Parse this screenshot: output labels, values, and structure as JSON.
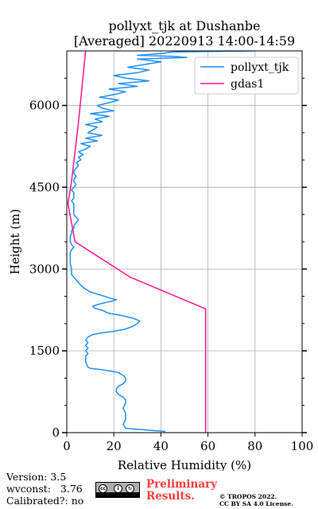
{
  "chart_data": {
    "type": "line",
    "title": "pollyxt_tjk at Dushanbe",
    "subtitle": "[Averaged] 20220913 14:00-14:59",
    "xlabel": "Relative Humidity (%)",
    "ylabel": "Height (m)",
    "xlim": [
      0,
      100
    ],
    "ylim": [
      0,
      7000
    ],
    "xticks": [
      0,
      20,
      40,
      60,
      80,
      100
    ],
    "yticks": [
      0,
      1500,
      3000,
      4500,
      6000
    ],
    "grid": true,
    "legend_position": "top-right",
    "series": [
      {
        "name": "pollyxt_tjk",
        "color": "#1e90ff",
        "x": [
          42,
          25,
          24,
          25,
          25,
          24,
          25,
          25,
          24,
          22,
          21,
          21,
          22,
          24,
          25,
          25,
          24,
          22,
          20,
          17,
          14,
          10,
          9,
          8,
          8,
          9,
          8,
          9,
          8,
          9,
          8,
          9,
          11,
          15,
          20,
          25,
          28,
          30,
          31,
          28,
          25,
          22,
          19,
          17,
          16,
          12,
          11,
          14,
          18,
          20,
          21,
          19,
          16,
          13,
          10,
          8,
          6,
          5,
          4,
          3,
          2,
          2,
          1.5,
          1.5,
          1.5,
          2,
          3,
          2,
          1.5,
          1.5,
          2,
          2,
          3,
          3,
          4,
          5,
          4,
          3,
          3,
          3,
          2,
          3,
          3,
          2,
          3,
          4,
          3,
          3,
          4,
          3,
          3,
          4,
          5,
          4,
          6,
          5,
          7,
          5,
          8,
          10,
          6,
          13,
          8,
          15,
          9,
          11,
          13,
          8,
          15,
          12,
          18,
          10,
          20,
          15,
          13,
          18,
          22,
          14,
          20,
          25,
          18,
          30,
          22,
          35,
          25,
          20,
          30,
          35,
          26,
          33,
          40,
          30,
          51,
          45,
          30,
          40,
          45,
          80
        ],
        "y": [
          20,
          80,
          150,
          250,
          350,
          450,
          550,
          600,
          650,
          700,
          750,
          800,
          850,
          900,
          950,
          1000,
          1050,
          1100,
          1120,
          1140,
          1160,
          1180,
          1200,
          1300,
          1400,
          1450,
          1500,
          1550,
          1600,
          1650,
          1700,
          1750,
          1800,
          1830,
          1860,
          1900,
          1950,
          2000,
          2050,
          2100,
          2130,
          2160,
          2180,
          2200,
          2230,
          2280,
          2320,
          2360,
          2400,
          2420,
          2440,
          2460,
          2500,
          2540,
          2580,
          2630,
          2700,
          2750,
          2800,
          2850,
          2900,
          3000,
          3100,
          3200,
          3300,
          3350,
          3400,
          3450,
          3500,
          3600,
          3650,
          3700,
          3750,
          3800,
          3850,
          3900,
          3950,
          4000,
          4100,
          4200,
          4250,
          4300,
          4400,
          4450,
          4500,
          4550,
          4600,
          4650,
          4700,
          4750,
          4800,
          4850,
          4900,
          4950,
          5000,
          5050,
          5100,
          5150,
          5200,
          5250,
          5300,
          5350,
          5400,
          5450,
          5500,
          5550,
          5600,
          5650,
          5700,
          5750,
          5800,
          5850,
          5900,
          5950,
          6000,
          6050,
          6100,
          6150,
          6200,
          6250,
          6300,
          6350,
          6400,
          6450,
          6500,
          6550,
          6600,
          6650,
          6700,
          6750,
          6800,
          6850,
          6880,
          6900,
          6920,
          6950,
          6980,
          7000
        ]
      },
      {
        "name": "gdas1",
        "color": "#ff1493",
        "x": [
          59,
          59,
          59,
          27,
          3.5,
          0.5,
          2,
          5,
          8
        ],
        "y": [
          0,
          1500,
          2270,
          2850,
          3500,
          4200,
          4600,
          5700,
          7000
        ]
      }
    ]
  },
  "footer": {
    "version": "Version: 3.5",
    "wvconst": "wvconst:   3.76",
    "calibrated": "Calibrated?: no",
    "prelim_line1": "Preliminary",
    "prelim_line2": "Results.",
    "copyright": "© TROPOS 2022.",
    "license": "CC BY SA 4.0 License."
  }
}
